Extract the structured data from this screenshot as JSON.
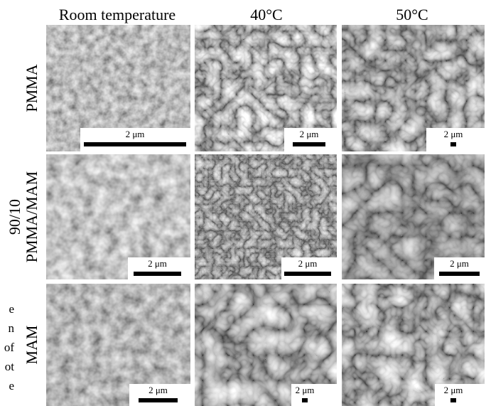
{
  "column_headers": [
    "Room temperature",
    "40°C",
    "50°C"
  ],
  "row_labels": [
    [
      "PMMA"
    ],
    [
      "90/10",
      "PMMA/MAM"
    ],
    [
      "MAM"
    ]
  ],
  "panels": [
    [
      {
        "scale_label": "2 μm"
      },
      {
        "scale_label": "2 μm"
      },
      {
        "scale_label": "2 μm"
      }
    ],
    [
      {
        "scale_label": "2 μm"
      },
      {
        "scale_label": "2 μm"
      },
      {
        "scale_label": "2 μm"
      }
    ],
    [
      {
        "scale_label": "2 μm"
      },
      {
        "scale_label": "2 μm"
      },
      {
        "scale_label": "2 μm"
      }
    ]
  ],
  "side_text": [
    "e",
    "n",
    "of",
    "ot",
    "e"
  ]
}
